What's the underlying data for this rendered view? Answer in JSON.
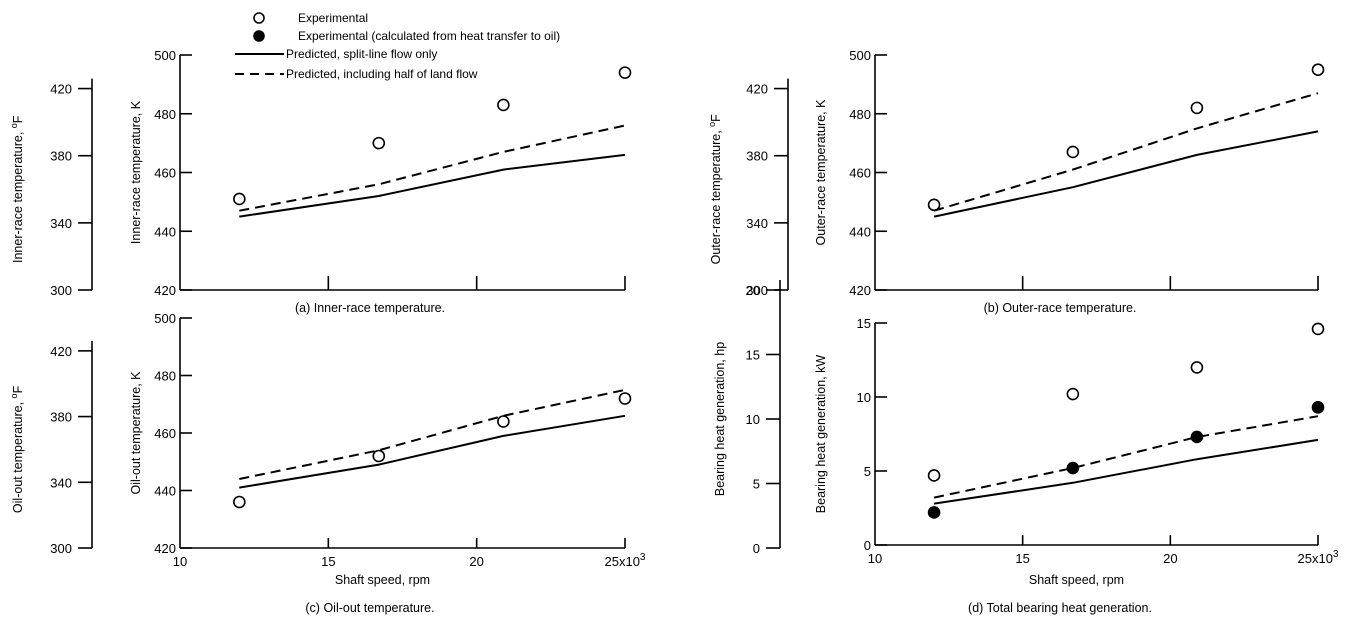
{
  "legend": {
    "items": [
      {
        "marker": "open-circle",
        "label": "Experimental"
      },
      {
        "marker": "filled-circle",
        "label": "Experimental (calculated from heat transfer to oil)"
      },
      {
        "marker": "solid-line",
        "label": "Predicted, split-line flow only"
      },
      {
        "marker": "dashed-line",
        "label": "Predicted, including half of land flow"
      }
    ]
  },
  "colors": {
    "ink": "#000000",
    "background": "#ffffff"
  },
  "chart_data": [
    {
      "id": "a",
      "type": "line",
      "caption": "(a) Inner-race temperature.",
      "xlabel": "",
      "x_ticks": [
        "",
        "",
        "",
        ""
      ],
      "xlim": [
        10,
        25
      ],
      "ylabel": "Inner-race temperature, K",
      "ylim": [
        420,
        500
      ],
      "y_ticks": [
        420,
        440,
        460,
        480,
        500
      ],
      "secondary_ylabel": "Inner-race temperature, °F",
      "secondary_ylim": [
        300,
        440
      ],
      "secondary_y_ticks": [
        300,
        340,
        380,
        420
      ],
      "series": [
        {
          "style": "open-circle",
          "x": [
            12,
            16.7,
            20.9,
            25
          ],
          "y": [
            451,
            470,
            483,
            494
          ]
        },
        {
          "style": "solid",
          "x": [
            12,
            16.7,
            20.9,
            25
          ],
          "y": [
            445,
            452,
            461,
            466
          ]
        },
        {
          "style": "dashed",
          "x": [
            12,
            16.7,
            20.9,
            25
          ],
          "y": [
            447,
            456,
            467,
            476
          ]
        }
      ]
    },
    {
      "id": "b",
      "type": "line",
      "caption": "(b) Outer-race temperature.",
      "xlabel": "",
      "x_ticks": [
        "",
        "",
        "",
        ""
      ],
      "xlim": [
        10,
        25
      ],
      "ylabel": "Outer-race temperature, K",
      "ylim": [
        420,
        500
      ],
      "y_ticks": [
        420,
        440,
        460,
        480,
        500
      ],
      "secondary_ylabel": "Outer-race temperature, °F",
      "secondary_ylim": [
        300,
        440
      ],
      "secondary_y_ticks": [
        300,
        340,
        380,
        420
      ],
      "series": [
        {
          "style": "open-circle",
          "x": [
            12,
            16.7,
            20.9,
            25
          ],
          "y": [
            449,
            467,
            482,
            495
          ]
        },
        {
          "style": "solid",
          "x": [
            12,
            16.7,
            20.9,
            25
          ],
          "y": [
            445,
            455,
            466,
            474
          ]
        },
        {
          "style": "dashed",
          "x": [
            12,
            16.7,
            20.9,
            25
          ],
          "y": [
            447,
            461,
            475,
            487
          ]
        }
      ]
    },
    {
      "id": "c",
      "type": "line",
      "caption": "(c) Oil-out temperature.",
      "xlabel": "Shaft speed, rpm",
      "x_ticks": [
        "10",
        "15",
        "20",
        "25x10"
      ],
      "x_tick_superscript": "3",
      "xlim": [
        10,
        25
      ],
      "ylabel": "Oil-out temperature, K",
      "ylim": [
        420,
        500
      ],
      "y_ticks": [
        420,
        440,
        460,
        480,
        500
      ],
      "secondary_ylabel": "Oil-out temperature, °F",
      "secondary_ylim": [
        300,
        440
      ],
      "secondary_y_ticks": [
        300,
        340,
        380,
        420
      ],
      "series": [
        {
          "style": "open-circle",
          "x": [
            12,
            16.7,
            20.9,
            25
          ],
          "y": [
            436,
            452,
            464,
            472
          ]
        },
        {
          "style": "solid",
          "x": [
            12,
            16.7,
            20.9,
            25
          ],
          "y": [
            441,
            449,
            459,
            466
          ]
        },
        {
          "style": "dashed",
          "x": [
            12,
            16.7,
            20.9,
            25
          ],
          "y": [
            444,
            454,
            466,
            475
          ]
        }
      ]
    },
    {
      "id": "d",
      "type": "line",
      "caption": "(d) Total bearing heat generation.",
      "xlabel": "Shaft speed, rpm",
      "x_ticks": [
        "10",
        "15",
        "20",
        "25x10"
      ],
      "x_tick_superscript": "3",
      "xlim": [
        10,
        25
      ],
      "ylabel": "Bearing heat generation, kW",
      "ylim": [
        0,
        15
      ],
      "y_ticks": [
        0,
        5,
        10,
        15
      ],
      "secondary_ylabel": "Bearing heat generation, hp",
      "secondary_ylim": [
        0,
        20
      ],
      "secondary_y_ticks": [
        0,
        5,
        10,
        15,
        20
      ],
      "series": [
        {
          "style": "open-circle",
          "x": [
            12,
            16.7,
            20.9,
            25
          ],
          "y": [
            4.7,
            10.2,
            12,
            14.6
          ]
        },
        {
          "style": "filled-circle",
          "x": [
            12,
            16.7,
            20.9,
            25
          ],
          "y": [
            2.2,
            5.2,
            7.3,
            9.3
          ]
        },
        {
          "style": "solid",
          "x": [
            12,
            16.7,
            20.9,
            25
          ],
          "y": [
            2.8,
            4.2,
            5.8,
            7.1
          ]
        },
        {
          "style": "dashed",
          "x": [
            12,
            16.7,
            20.9,
            25
          ],
          "y": [
            3.2,
            5.2,
            7.3,
            8.7
          ]
        }
      ]
    }
  ]
}
